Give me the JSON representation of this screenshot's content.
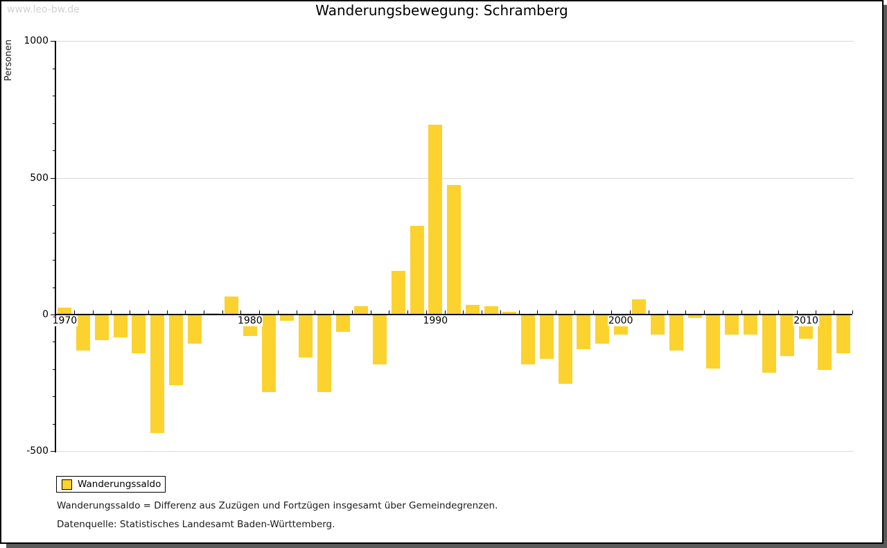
{
  "watermark": "www.leo-bw.de",
  "title": "Wanderungsbewegung: Schramberg",
  "y_axis": {
    "label": "Personen",
    "major_tick_labels": [
      "1000",
      "500",
      "0",
      "-500"
    ],
    "major_tick_values": [
      1000,
      500,
      0,
      -500
    ]
  },
  "x_axis": {
    "labeled_years": [
      1970,
      1980,
      1990,
      2000,
      2010
    ]
  },
  "legend": {
    "label": "Wanderungssaldo"
  },
  "footnotes": [
    "Wanderungssaldo = Differenz aus Zuzügen und Fortzügen insgesamt über Gemeindegrenzen.",
    "Datenquelle: Statistisches Landesamt Baden-Württemberg."
  ],
  "colors": {
    "bar": "#fcd22e",
    "grid": "#d9d9d9",
    "axis": "#000000",
    "watermark": "#d2d2d2",
    "shadow": "#5a5a5a"
  },
  "chart_data": {
    "type": "bar",
    "title": "Wanderungsbewegung: Schramberg",
    "xlabel": "",
    "ylabel": "Personen",
    "ylim": [
      -500,
      1000
    ],
    "grid": "horizontal-major",
    "legend_position": "bottom-left",
    "series_name": "Wanderungssaldo",
    "years": [
      1970,
      1971,
      1972,
      1973,
      1974,
      1975,
      1976,
      1977,
      1978,
      1979,
      1980,
      1981,
      1982,
      1983,
      1984,
      1985,
      1986,
      1987,
      1988,
      1989,
      1990,
      1991,
      1992,
      1993,
      1994,
      1995,
      1996,
      1997,
      1998,
      1999,
      2000,
      2001,
      2002,
      2003,
      2004,
      2005,
      2006,
      2007,
      2008,
      2009,
      2010,
      2011,
      2012
    ],
    "values": [
      25,
      -130,
      -90,
      -80,
      -140,
      -430,
      -255,
      -105,
      5,
      65,
      -75,
      -280,
      -20,
      -155,
      -280,
      -60,
      30,
      -180,
      160,
      325,
      695,
      475,
      35,
      30,
      10,
      -180,
      -160,
      -250,
      -125,
      -105,
      -70,
      55,
      -70,
      -130,
      -10,
      -195,
      -70,
      -70,
      -210,
      -150,
      -85,
      -200,
      -140
    ]
  }
}
